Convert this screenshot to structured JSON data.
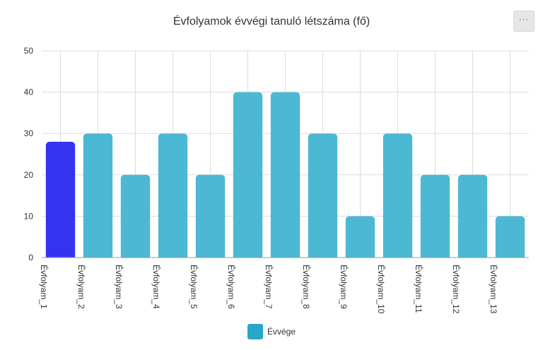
{
  "colors": {
    "series": "#4cb8d3",
    "highlight": "#3333f0",
    "legend_swatch": "#27a7c9",
    "grid": "#dcdcdc",
    "axis": "#999999"
  },
  "toolbar": {
    "menu_glyph": "···"
  },
  "chart_data": {
    "type": "bar",
    "title": "Évfolyamok évvégi tanuló létszáma (fő)",
    "categories": [
      "Évfolyam_1",
      "Évfolyam_2",
      "Évfolyam_3",
      "Évfolyam_4",
      "Évfolyam_5",
      "Évfolyam_6",
      "Évfolyam_7",
      "Évfolyam_8",
      "Évfolyam_9",
      "Évfolyam_10",
      "Évfolyam_11",
      "Évfolyam_12",
      "Évfolyam_13"
    ],
    "series": [
      {
        "name": "Évvége",
        "values": [
          28,
          30,
          20,
          30,
          20,
          40,
          40,
          30,
          10,
          30,
          20,
          20,
          10
        ]
      }
    ],
    "highlighted_index": 0,
    "ylim": [
      0,
      50
    ],
    "yticks": [
      0,
      10,
      20,
      30,
      40,
      50
    ],
    "grid": true,
    "legend_position": "bottom"
  }
}
